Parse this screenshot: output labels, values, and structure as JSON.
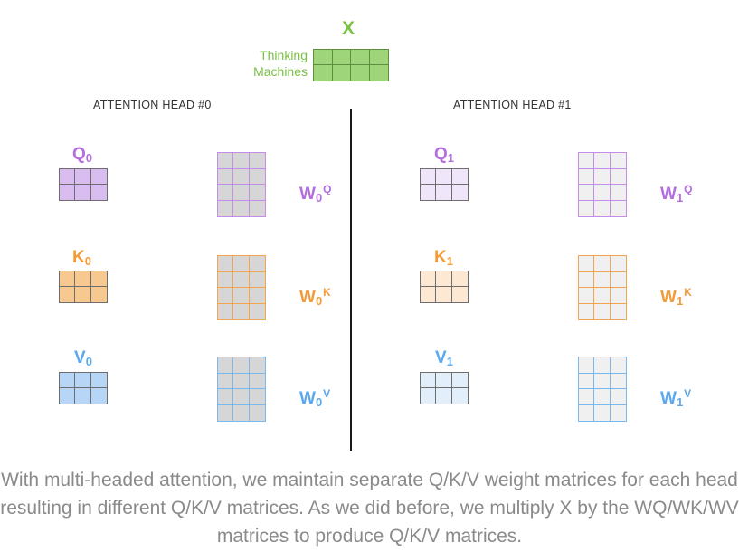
{
  "x_block": {
    "title": "X",
    "words": [
      "Thinking",
      "Machines"
    ],
    "color": "#7ac143",
    "fill": "#9ed47a"
  },
  "heads": [
    {
      "label": "ATTENTION HEAD #0",
      "q": {
        "letter": "Q",
        "sub": "0"
      },
      "k": {
        "letter": "K",
        "sub": "0"
      },
      "v": {
        "letter": "V",
        "sub": "0"
      },
      "wq": {
        "letter": "W",
        "sub": "0",
        "sup": "Q"
      },
      "wk": {
        "letter": "W",
        "sub": "0",
        "sup": "K"
      },
      "wv": {
        "letter": "W",
        "sub": "0",
        "sup": "V"
      }
    },
    {
      "label": "ATTENTION HEAD #1",
      "q": {
        "letter": "Q",
        "sub": "1"
      },
      "k": {
        "letter": "K",
        "sub": "1"
      },
      "v": {
        "letter": "V",
        "sub": "1"
      },
      "wq": {
        "letter": "W",
        "sub": "1",
        "sup": "Q"
      },
      "wk": {
        "letter": "W",
        "sub": "1",
        "sup": "K"
      },
      "wv": {
        "letter": "W",
        "sub": "1",
        "sup": "V"
      }
    }
  ],
  "colors": {
    "q_text": "#b36ee0",
    "k_text": "#f39c37",
    "v_text": "#5aa9ef",
    "q_border": "#c58de8",
    "k_border": "#f3a450",
    "v_border": "#7ab8ef",
    "q_fill_head0": "#d9bdf0",
    "k_fill_head0": "#f8c891",
    "v_fill_head0": "#b7d6f7",
    "q_fill_head1": "#f1e6f9",
    "k_fill_head1": "#fde9d3",
    "v_fill_head1": "#e3eefb",
    "weight_fill_head0": "#d6d6d6",
    "weight_fill_head1": "#f0f0f0",
    "cell_line_dark": "#6e6e6e"
  },
  "caption": "With multi-headed attention, we maintain separate Q/K/V weight matrices for each head resulting in different Q/K/V matrices. As we did before, we multiply X by the WQ/WK/WV matrices to produce Q/K/V matrices."
}
